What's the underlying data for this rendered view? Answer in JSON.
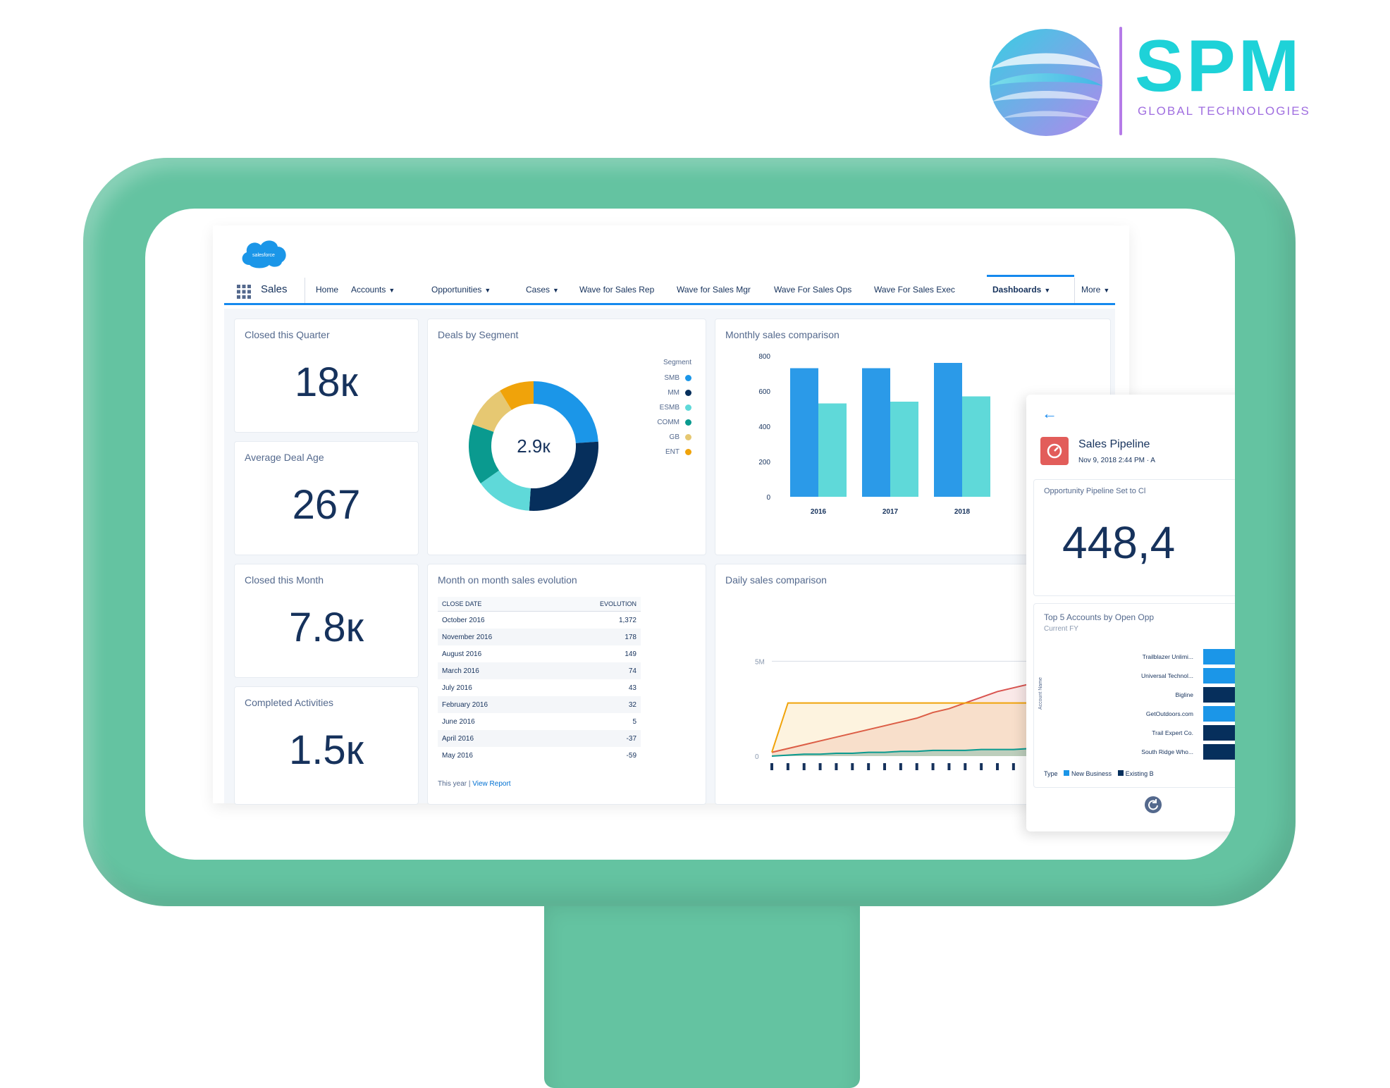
{
  "brand": {
    "name": "SPM",
    "tagline": "GLOBAL TECHNOLOGIES",
    "colors": {
      "name": "#1ed2d8",
      "tagline": "#a06ee0",
      "divider": "#b57be8"
    }
  },
  "monitor": {
    "color": "#64c3a1"
  },
  "app": {
    "logo_text": "salesforce",
    "app_name": "Sales",
    "nav": {
      "home": "Home",
      "accounts": "Accounts",
      "opportunities": "Opportunities",
      "cases": "Cases",
      "wave_rep": "Wave for Sales Rep",
      "wave_mgr": "Wave for Sales Mgr",
      "wave_ops": "Wave For Sales Ops",
      "wave_exec": "Wave For Sales Exec",
      "dashboards": "Dashboards",
      "more": "More"
    },
    "accent": "#1589ee"
  },
  "kpis": {
    "closed_quarter": {
      "title": "Closed this Quarter",
      "value": "18к"
    },
    "deal_age": {
      "title": "Average Deal Age",
      "value": "267"
    },
    "closed_month": {
      "title": "Closed this Month",
      "value": "7.8к"
    },
    "activities": {
      "title": "Completed Activities",
      "value": "1.5к"
    }
  },
  "deals": {
    "title": "Deals by Segment",
    "center_value": "2.9к",
    "legend_title": "Segment"
  },
  "monthly": {
    "title": "Monthly sales comparison"
  },
  "mom": {
    "title": "Month on month sales evolution",
    "col_date": "CLOSE DATE",
    "col_evolution": "EVOLUTION",
    "rows": [
      {
        "date": "October 2016",
        "evolution": "1,372"
      },
      {
        "date": "November 2016",
        "evolution": "178"
      },
      {
        "date": "August 2016",
        "evolution": "149"
      },
      {
        "date": "March 2016",
        "evolution": "74"
      },
      {
        "date": "July 2016",
        "evolution": "43"
      },
      {
        "date": "February 2016",
        "evolution": "32"
      },
      {
        "date": "June 2016",
        "evolution": "5"
      },
      {
        "date": "April 2016",
        "evolution": "-37"
      },
      {
        "date": "May 2016",
        "evolution": "-59"
      }
    ],
    "footer_period": "This year |",
    "footer_link": "View Report"
  },
  "daily": {
    "title": "Daily sales comparison"
  },
  "side_panel": {
    "title": "Sales Pipeline",
    "subtitle": "Nov 9, 2018 2:44 PM · A",
    "metric_title": "Opportunity Pipeline Set to Cl",
    "metric_value": "448,4",
    "top_title": "Top 5 Accounts by Open Opp",
    "top_subtitle": "Current FY",
    "legend_type": "Type",
    "legend_new": "New Business",
    "legend_existing": "Existing B",
    "refresh_label": "Refresh"
  },
  "chart_data": [
    {
      "type": "pie",
      "title": "Deals by Segment",
      "legend_title": "Segment",
      "legend_position": "right",
      "categories": [
        "SMB",
        "MM",
        "ESMB",
        "COMM",
        "GB",
        "ENT"
      ],
      "values": [
        22,
        25,
        13,
        14,
        10,
        8
      ],
      "colors": [
        "#1b96e8",
        "#062f5c",
        "#5fd9d9",
        "#0a9a8f",
        "#e6c872",
        "#f0a30a"
      ],
      "center_label": "2.9к"
    },
    {
      "type": "bar",
      "title": "Monthly sales comparison",
      "categories": [
        "2016",
        "2017",
        "2018"
      ],
      "series": [
        {
          "values": [
            730,
            730,
            760
          ],
          "color": "#2b9ae8"
        },
        {
          "values": [
            530,
            540,
            570
          ],
          "color": "#5fd9d9"
        }
      ],
      "yticks": [
        "0",
        "200",
        "400",
        "600",
        "800"
      ],
      "ylim": [
        0,
        800
      ],
      "grid": false
    },
    {
      "type": "area",
      "title": "Daily sales comparison",
      "y_label_tick": "5M",
      "y_zero": "0",
      "x_tick_count": 22,
      "series": [
        {
          "values": [
            0.2,
            0.4,
            0.6,
            0.8,
            1.0,
            1.2,
            1.4,
            1.6,
            1.8,
            2.0,
            2.3,
            2.5,
            2.8,
            3.1,
            3.4,
            3.6,
            3.8,
            4.0,
            4.2,
            4.4,
            4.7,
            5.2
          ],
          "color": "#d9534f"
        },
        {
          "values": [
            0.2,
            2.8,
            2.8,
            2.8,
            2.8,
            2.8,
            2.8,
            2.8,
            2.8,
            2.8,
            2.8,
            2.8,
            2.8,
            2.8,
            2.8,
            2.8,
            2.8,
            2.8,
            2.8,
            2.8,
            2.8,
            2.8
          ],
          "color": "#f0a30a"
        },
        {
          "values": [
            0.0,
            0.05,
            0.1,
            0.1,
            0.15,
            0.15,
            0.2,
            0.2,
            0.25,
            0.25,
            0.3,
            0.3,
            0.3,
            0.35,
            0.35,
            0.35,
            0.4,
            0.4,
            0.4,
            0.4,
            0.45,
            0.45
          ],
          "color": "#0a9a8f"
        }
      ]
    },
    {
      "type": "bar",
      "orientation": "horizontal",
      "title": "Top 5 Accounts by Open Opp",
      "axis_label": "Account Name",
      "categories": [
        "Trailblazer Unlimi...",
        "Universal Technol...",
        "Bigline",
        "GetOutdoors.com",
        "Trail Expert Co.",
        "South Ridge Who..."
      ],
      "colors": [
        "#1b96e8",
        "#1b96e8",
        "#062f5c",
        "#1b96e8",
        "#062f5c",
        "#062f5c"
      ],
      "legend": [
        "New Business",
        "Existing B"
      ]
    }
  ]
}
